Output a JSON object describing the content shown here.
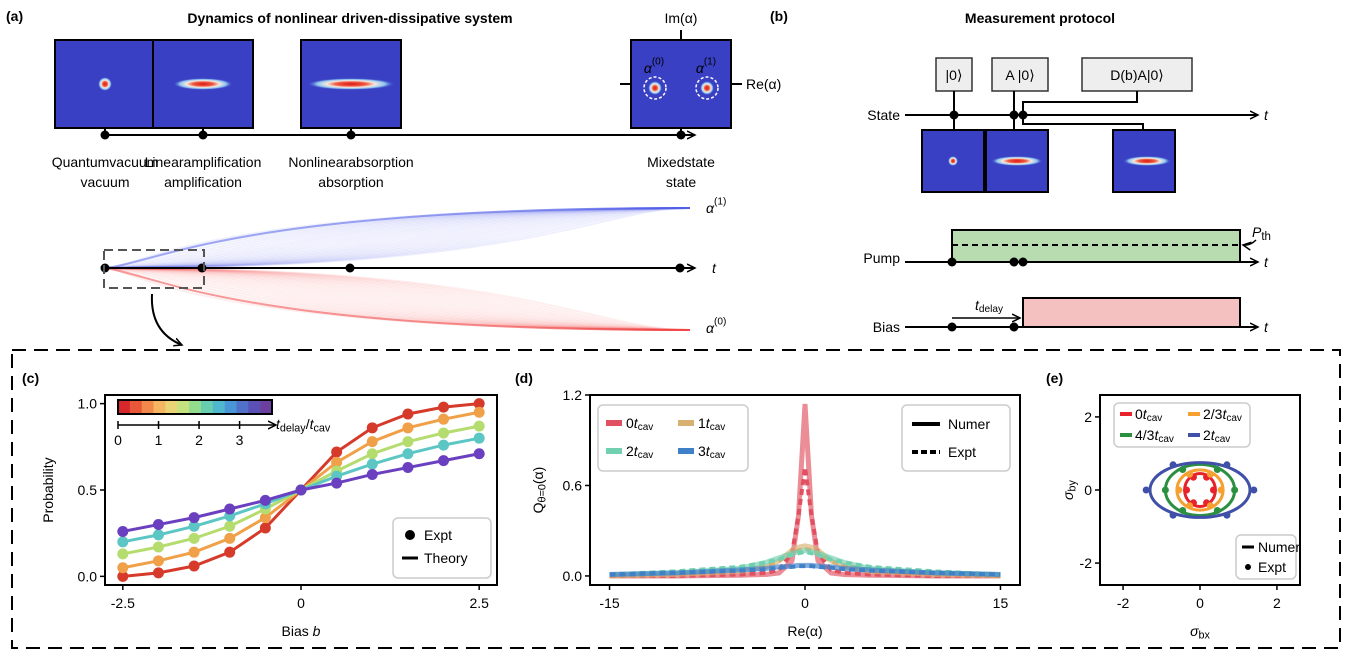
{
  "panel_a": {
    "label": "(a)",
    "title": "Dynamics of nonlinear driven-dissipative system",
    "im_axis": "Im(α)",
    "re_axis": "Re(α)",
    "alpha_0": [
      "α",
      "(0)"
    ],
    "alpha_1": [
      "α",
      "(1)"
    ],
    "stages": [
      [
        "Quantum",
        "vacuum"
      ],
      [
        "Linear",
        "amplification"
      ],
      [
        "Nonlinear",
        "absorption"
      ],
      [
        "Mixed",
        "state"
      ]
    ],
    "time": "t"
  },
  "panel_b": {
    "label": "(b)",
    "title": "Measurement protocol",
    "states": [
      "|0⟩",
      "A |0⟩",
      "D(b)A|0⟩"
    ],
    "rows": [
      "State",
      "Pump",
      "Bias"
    ],
    "time": "t",
    "threshold": [
      "P",
      "th"
    ],
    "delay": [
      "t",
      "delay"
    ]
  },
  "chart_data": [
    {
      "type": "line",
      "panel": "(c)",
      "x_label": [
        "Bias ",
        "b"
      ],
      "y_label": "Probability",
      "x": [
        -2.5,
        -2,
        -1.5,
        -1,
        -0.5,
        0,
        0.5,
        1,
        1.5,
        2,
        2.5
      ],
      "xlim": [
        -2.75,
        2.75
      ],
      "xticks": [
        -2.5,
        0,
        2.5
      ],
      "ylim": [
        -0.05,
        1.05
      ],
      "yticks": [
        {
          "value": 0,
          "label": "0.0"
        },
        {
          "value": 0.5,
          "label": "0.5"
        },
        {
          "value": 1,
          "label": "1.0"
        }
      ],
      "series": [
        {
          "color": "#d63a2a",
          "values": [
            0.0,
            0.02,
            0.06,
            0.14,
            0.28,
            0.5,
            0.72,
            0.86,
            0.94,
            0.98,
            1.0
          ]
        },
        {
          "color": "#f0a048",
          "values": [
            0.05,
            0.09,
            0.14,
            0.22,
            0.34,
            0.5,
            0.66,
            0.78,
            0.86,
            0.91,
            0.95
          ]
        },
        {
          "color": "#b5dc6e",
          "values": [
            0.13,
            0.17,
            0.22,
            0.29,
            0.39,
            0.5,
            0.61,
            0.71,
            0.78,
            0.83,
            0.87
          ]
        },
        {
          "color": "#5cc6c4",
          "values": [
            0.2,
            0.24,
            0.29,
            0.35,
            0.42,
            0.5,
            0.58,
            0.65,
            0.71,
            0.76,
            0.8
          ]
        },
        {
          "color": "#6a40c0",
          "values": [
            0.26,
            0.3,
            0.34,
            0.39,
            0.44,
            0.5,
            0.54,
            0.59,
            0.63,
            0.67,
            0.71
          ]
        }
      ],
      "legend": [
        "Expt",
        "Theory"
      ],
      "colorbar": {
        "colors": [
          "#d6282b",
          "#e8573a",
          "#f2884b",
          "#f6b560",
          "#e9d576",
          "#c4e37f",
          "#94dc8d",
          "#68ceb0",
          "#4fb8cf",
          "#4a95d6",
          "#5070c9",
          "#5a50b5",
          "#6a3fa0"
        ],
        "lim": [
          0,
          3.8
        ],
        "ticks": [
          0,
          1,
          2,
          3
        ],
        "label": [
          "t",
          "delay",
          "/",
          "t",
          "cav"
        ]
      }
    },
    {
      "type": "line",
      "panel": "(d)",
      "x_label": "Re(α)",
      "y_label": [
        "Q",
        "θ=0",
        "(α)"
      ],
      "x": [
        -15,
        -10,
        -5,
        -3,
        -2,
        -1,
        -0.5,
        0,
        0.5,
        1,
        2,
        3,
        5,
        10,
        15
      ],
      "xlim": [
        -16.5,
        16.5
      ],
      "xticks": [
        -15,
        0,
        15
      ],
      "ylim": [
        -0.06,
        1.2
      ],
      "yticks": [
        {
          "value": 0,
          "label": "0.0"
        },
        {
          "value": 0.6,
          "label": "0.6"
        },
        {
          "value": 1.2,
          "label": "1.2"
        }
      ],
      "legend_unit": [
        "t",
        "cav"
      ],
      "series": [
        {
          "name": "0",
          "color": "#e05060",
          "values": [
            0,
            0,
            0.005,
            0.01,
            0.02,
            0.1,
            0.4,
            1.14,
            0.4,
            0.1,
            0.02,
            0.01,
            0.005,
            0,
            0
          ],
          "expt": [
            0,
            0,
            0.01,
            0.02,
            0.04,
            0.15,
            0.4,
            0.72,
            0.4,
            0.15,
            0.04,
            0.02,
            0.01,
            0,
            0
          ]
        },
        {
          "name": "1",
          "color": "#d8b070",
          "values": [
            0,
            0.01,
            0.03,
            0.06,
            0.1,
            0.17,
            0.19,
            0.2,
            0.19,
            0.17,
            0.1,
            0.06,
            0.03,
            0.01,
            0
          ],
          "expt": [
            0.01,
            0.02,
            0.04,
            0.07,
            0.1,
            0.15,
            0.17,
            0.18,
            0.17,
            0.15,
            0.1,
            0.07,
            0.04,
            0.02,
            0.01
          ]
        },
        {
          "name": "2",
          "color": "#70d0b0",
          "values": [
            0.01,
            0.02,
            0.05,
            0.09,
            0.12,
            0.15,
            0.16,
            0.17,
            0.16,
            0.15,
            0.12,
            0.09,
            0.05,
            0.02,
            0.01
          ],
          "expt": [
            0.01,
            0.03,
            0.06,
            0.09,
            0.11,
            0.14,
            0.15,
            0.16,
            0.15,
            0.14,
            0.11,
            0.09,
            0.06,
            0.03,
            0.01
          ]
        },
        {
          "name": "3",
          "color": "#4080c8",
          "values": [
            0.01,
            0.02,
            0.04,
            0.05,
            0.06,
            0.065,
            0.07,
            0.07,
            0.07,
            0.065,
            0.06,
            0.05,
            0.04,
            0.02,
            0.01
          ],
          "expt": [
            0.01,
            0.02,
            0.035,
            0.045,
            0.055,
            0.06,
            0.065,
            0.065,
            0.065,
            0.06,
            0.055,
            0.045,
            0.035,
            0.02,
            0.01
          ]
        }
      ],
      "style_legend": [
        "Numer",
        "Expt"
      ]
    },
    {
      "type": "scatter",
      "panel": "(e)",
      "x_label": [
        "σ",
        "bx"
      ],
      "y_label": [
        "σ",
        "by"
      ],
      "xlim": [
        -2.6,
        2.6
      ],
      "xticks": [
        -2,
        0,
        2
      ],
      "ylim": [
        -2.6,
        2.6
      ],
      "yticks": [
        -2,
        0,
        2
      ],
      "legend_unit": [
        "t",
        "cav"
      ],
      "series": [
        {
          "name": "0",
          "color": "#e8222a",
          "numer_rx": 0.4,
          "numer_ry": 0.45,
          "x": [
            0.35,
            0.17,
            -0.17,
            -0.35,
            -0.17,
            0.17
          ],
          "y": [
            0,
            0.35,
            0.35,
            0,
            -0.35,
            -0.35
          ]
        },
        {
          "name": "2/3",
          "color": "#f5a030",
          "numer_rx": 0.6,
          "numer_ry": 0.55,
          "x": [
            0.55,
            0.27,
            -0.27,
            -0.55,
            -0.27,
            0.27
          ],
          "y": [
            0,
            0.43,
            0.43,
            0,
            -0.43,
            -0.43
          ]
        },
        {
          "name": "4/3",
          "color": "#2a9040",
          "numer_rx": 0.9,
          "numer_ry": 0.7,
          "x": [
            0.9,
            0.45,
            -0.45,
            -0.9,
            -0.45,
            0.45
          ],
          "y": [
            0,
            0.56,
            0.56,
            0,
            -0.56,
            -0.56
          ]
        },
        {
          "name": "2",
          "color": "#4050a8",
          "numer_rx": 1.3,
          "numer_ry": 0.75,
          "x": [
            1.4,
            0.7,
            -0.7,
            -1.4,
            -0.7,
            0.7
          ],
          "y": [
            0,
            0.69,
            0.69,
            0,
            -0.69,
            -0.69
          ]
        }
      ],
      "style_legend": [
        "Numer",
        "Expt"
      ]
    }
  ]
}
